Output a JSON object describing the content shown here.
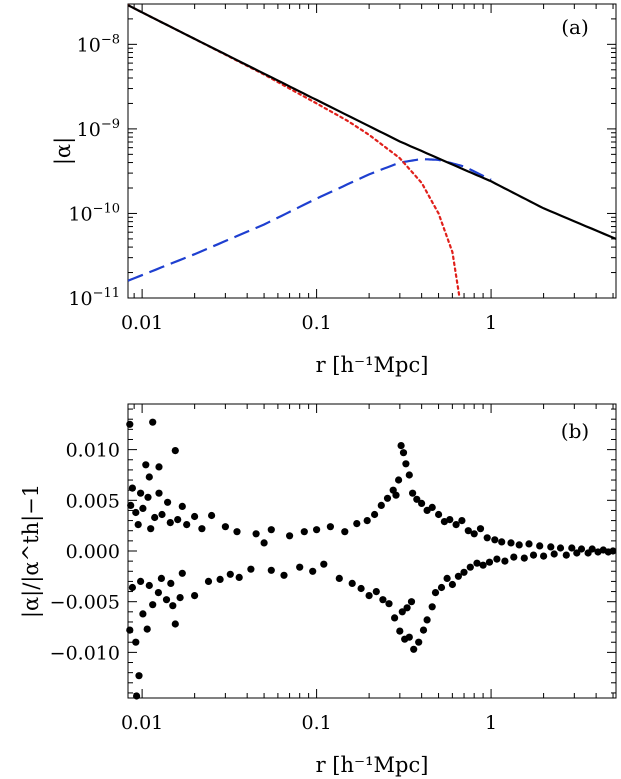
{
  "chart_data": [
    {
      "panel": "a",
      "type": "line",
      "annotation": "(a)",
      "ylabel": "|α|",
      "xlabel": "r [h⁻¹Mpc]",
      "xscale": "log",
      "yscale": "log",
      "xlim": [
        0.0083,
        5.2
      ],
      "ylim": [
        1e-11,
        3e-08
      ],
      "x_ticks": [
        {
          "value": 0.01,
          "label": "0.01"
        },
        {
          "value": 0.1,
          "label": "0.1"
        },
        {
          "value": 1,
          "label": "1"
        }
      ],
      "y_ticks": [
        {
          "value": 1e-08,
          "base": "10",
          "exp": "−8"
        },
        {
          "value": 1e-09,
          "base": "10",
          "exp": "−9"
        },
        {
          "value": 1e-10,
          "base": "10",
          "exp": "−10"
        },
        {
          "value": 1e-11,
          "base": "10",
          "exp": "−11"
        }
      ],
      "series": [
        {
          "style": "solid",
          "color": "#000000",
          "x": [
            0.0083,
            0.02,
            0.05,
            0.1,
            0.3,
            0.7,
            1.0,
            2.0,
            5.2
          ],
          "y": [
            2.9e-08,
            1.16e-08,
            4.5e-09,
            2.2e-09,
            7.1e-10,
            3.3e-10,
            2.4e-10,
            1.15e-10,
            5e-11
          ]
        },
        {
          "style": "dotted",
          "color": "#e0201b",
          "x": [
            0.0083,
            0.02,
            0.05,
            0.1,
            0.15,
            0.2,
            0.3,
            0.4,
            0.5,
            0.6,
            0.66
          ],
          "y": [
            2.9e-08,
            1.16e-08,
            4.4e-09,
            2e-09,
            1.25e-09,
            8.5e-10,
            4.5e-10,
            2.3e-10,
            1e-10,
            3.5e-11,
            1e-11
          ]
        },
        {
          "style": "dashed",
          "color": "#1e3fd0",
          "x": [
            0.0083,
            0.02,
            0.05,
            0.1,
            0.2,
            0.3,
            0.4,
            0.5,
            0.7,
            1.0
          ],
          "y": [
            1.6e-11,
            3.3e-11,
            7.4e-11,
            1.5e-10,
            2.9e-10,
            4e-10,
            4.4e-10,
            4.3e-10,
            3.6e-10,
            2.5e-10
          ]
        }
      ]
    },
    {
      "panel": "b",
      "type": "scatter",
      "annotation": "(b)",
      "ylabel": "|α|/|α^th|−1",
      "xlabel": "r [h⁻¹Mpc]",
      "xscale": "log",
      "xlim": [
        0.0083,
        5.2
      ],
      "ylim": [
        -0.0145,
        0.0145
      ],
      "x_ticks": [
        {
          "value": 0.01,
          "label": "0.01"
        },
        {
          "value": 0.1,
          "label": "0.1"
        },
        {
          "value": 1,
          "label": "1"
        }
      ],
      "y_ticks": [
        {
          "value": 0.01,
          "label": "0.010"
        },
        {
          "value": 0.005,
          "label": "0.005"
        },
        {
          "value": 0,
          "label": "0.000"
        },
        {
          "value": -0.005,
          "label": "−0.005"
        },
        {
          "value": -0.01,
          "label": "−0.010"
        }
      ],
      "points": [
        [
          0.0085,
          0.0125
        ],
        [
          0.0115,
          0.0127
        ],
        [
          0.0155,
          0.0099
        ],
        [
          0.0125,
          0.0083
        ],
        [
          0.0105,
          0.0085
        ],
        [
          0.011,
          0.0073
        ],
        [
          0.0088,
          0.0062
        ],
        [
          0.0098,
          0.0057
        ],
        [
          0.0108,
          0.0053
        ],
        [
          0.0125,
          0.0057
        ],
        [
          0.014,
          0.0048
        ],
        [
          0.017,
          0.0044
        ],
        [
          0.0086,
          0.0045
        ],
        [
          0.0092,
          0.0038
        ],
        [
          0.0101,
          0.0042
        ],
        [
          0.0118,
          0.0033
        ],
        [
          0.013,
          0.0036
        ],
        [
          0.0145,
          0.0028
        ],
        [
          0.016,
          0.0031
        ],
        [
          0.018,
          0.0026
        ],
        [
          0.02,
          0.0034
        ],
        [
          0.022,
          0.0022
        ],
        [
          0.0095,
          0.0026
        ],
        [
          0.0112,
          0.0022
        ],
        [
          0.0085,
          -0.0078
        ],
        [
          0.0092,
          -0.009
        ],
        [
          0.0096,
          -0.0123
        ],
        [
          0.0093,
          -0.0143
        ],
        [
          0.0101,
          -0.0062
        ],
        [
          0.0107,
          -0.0077
        ],
        [
          0.0115,
          -0.0053
        ],
        [
          0.0124,
          -0.0041
        ],
        [
          0.0138,
          -0.0048
        ],
        [
          0.015,
          -0.0054
        ],
        [
          0.0165,
          -0.0046
        ],
        [
          0.0155,
          -0.0072
        ],
        [
          0.0088,
          -0.0036
        ],
        [
          0.0098,
          -0.003
        ],
        [
          0.011,
          -0.0034
        ],
        [
          0.0129,
          -0.0027
        ],
        [
          0.0146,
          -0.0032
        ],
        [
          0.017,
          -0.0022
        ],
        [
          0.02,
          -0.0044
        ],
        [
          0.024,
          -0.003
        ],
        [
          0.028,
          -0.0028
        ],
        [
          0.032,
          -0.0023
        ],
        [
          0.036,
          -0.0026
        ],
        [
          0.042,
          -0.0018
        ],
        [
          0.025,
          0.0035
        ],
        [
          0.03,
          0.0024
        ],
        [
          0.035,
          0.0019
        ],
        [
          0.045,
          0.0017
        ],
        [
          0.055,
          0.0021
        ],
        [
          0.07,
          0.0015
        ],
        [
          0.055,
          -0.0019
        ],
        [
          0.065,
          -0.0024
        ],
        [
          0.08,
          -0.0016
        ],
        [
          0.095,
          -0.002
        ],
        [
          0.11,
          -0.0013
        ],
        [
          0.135,
          -0.0027
        ],
        [
          0.085,
          0.0019
        ],
        [
          0.1,
          0.0021
        ],
        [
          0.12,
          0.0024
        ],
        [
          0.145,
          0.0019
        ],
        [
          0.17,
          0.0027
        ],
        [
          0.195,
          0.003
        ],
        [
          0.16,
          -0.0032
        ],
        [
          0.18,
          -0.0037
        ],
        [
          0.2,
          -0.0044
        ],
        [
          0.22,
          -0.004
        ],
        [
          0.24,
          -0.0048
        ],
        [
          0.26,
          -0.0052
        ],
        [
          0.215,
          0.0036
        ],
        [
          0.235,
          0.0045
        ],
        [
          0.255,
          0.0052
        ],
        [
          0.275,
          0.006
        ],
        [
          0.295,
          0.007
        ],
        [
          0.305,
          0.0104
        ],
        [
          0.315,
          0.0097
        ],
        [
          0.325,
          0.0086
        ],
        [
          0.34,
          0.0075
        ],
        [
          0.285,
          0.0055
        ],
        [
          0.355,
          0.0057
        ],
        [
          0.375,
          0.0051
        ],
        [
          0.28,
          -0.0066
        ],
        [
          0.3,
          -0.0079
        ],
        [
          0.32,
          -0.0087
        ],
        [
          0.34,
          -0.0085
        ],
        [
          0.36,
          -0.0097
        ],
        [
          0.385,
          -0.009
        ],
        [
          0.41,
          -0.0078
        ],
        [
          0.31,
          -0.006
        ],
        [
          0.33,
          -0.0056
        ],
        [
          0.35,
          -0.005
        ],
        [
          0.43,
          -0.0068
        ],
        [
          0.46,
          -0.0055
        ],
        [
          0.4,
          0.0047
        ],
        [
          0.43,
          0.004
        ],
        [
          0.46,
          0.0043
        ],
        [
          0.5,
          0.0036
        ],
        [
          0.54,
          0.0029
        ],
        [
          0.58,
          0.0031
        ],
        [
          0.48,
          -0.0041
        ],
        [
          0.52,
          -0.0036
        ],
        [
          0.56,
          -0.0027
        ],
        [
          0.6,
          -0.0033
        ],
        [
          0.65,
          -0.0025
        ],
        [
          0.7,
          -0.0021
        ],
        [
          0.63,
          0.0026
        ],
        [
          0.68,
          0.003
        ],
        [
          0.74,
          0.002
        ],
        [
          0.8,
          0.0017
        ],
        [
          0.87,
          0.0022
        ],
        [
          0.95,
          0.0013
        ],
        [
          0.76,
          -0.0016
        ],
        [
          0.83,
          -0.0012
        ],
        [
          0.9,
          -0.0014
        ],
        [
          0.98,
          -0.0011
        ],
        [
          1.08,
          -0.0008
        ],
        [
          1.2,
          -0.001
        ],
        [
          1.05,
          0.0011
        ],
        [
          1.15,
          0.0009
        ],
        [
          1.3,
          0.0008
        ],
        [
          1.45,
          0.0006
        ],
        [
          1.65,
          0.0007
        ],
        [
          1.9,
          0.0005
        ],
        [
          1.35,
          -0.0006
        ],
        [
          1.55,
          -0.0007
        ],
        [
          1.75,
          -0.0004
        ],
        [
          2.0,
          -0.0005
        ],
        [
          2.3,
          -0.0003
        ],
        [
          2.7,
          -0.0004
        ],
        [
          2.2,
          0.0004
        ],
        [
          2.5,
          0.0003
        ],
        [
          2.9,
          0.0003
        ],
        [
          3.3,
          0.0002
        ],
        [
          3.8,
          0.0002
        ],
        [
          4.4,
          0.0001
        ],
        [
          3.1,
          -0.0002
        ],
        [
          3.6,
          -0.0002
        ],
        [
          4.1,
          -0.0001
        ],
        [
          4.7,
          -0.0001
        ],
        [
          5.0,
          0.0
        ],
        [
          0.05,
          0.0008
        ]
      ]
    }
  ]
}
